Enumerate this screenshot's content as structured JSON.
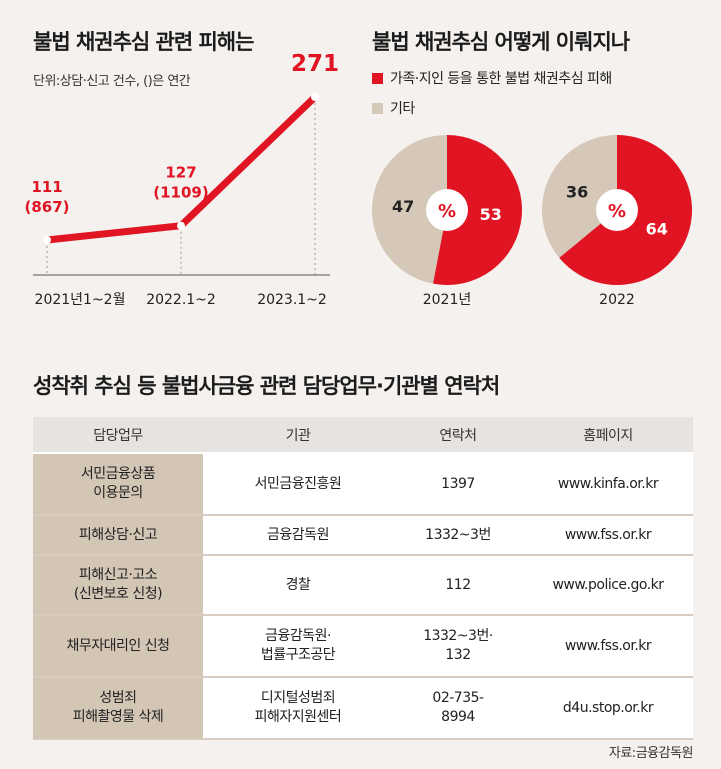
{
  "line_chart": {
    "title": "불법 채권추심 관련 피해는",
    "subtitle": "단위:상담·신고 건수, ()은 연간"
  },
  "pie_charts": {
    "title": "불법 채권추심 어떻게 이뤄지나",
    "legend": [
      {
        "label": "가족·지인 등을 통한 불법 채권추심 피해",
        "color": "#e01422"
      },
      {
        "label": "기타",
        "color": "#d6c8b8"
      }
    ],
    "center_label": "%"
  },
  "chart_data": [
    {
      "type": "line",
      "title": "불법 채권추심 관련 피해는",
      "subtitle": "단위:상담·신고 건수, ()은 연간",
      "categories": [
        "2021년1~2월",
        "2022.1~2",
        "2023.1~2"
      ],
      "values": [
        111,
        127,
        271
      ],
      "annual": [
        "(867)",
        "(1109)",
        ""
      ],
      "value_labels": [
        "111",
        "127",
        "271"
      ],
      "color": "#e01422"
    },
    {
      "type": "pie",
      "label": "2021년",
      "slices": [
        {
          "name": "가족·지인 등을 통한 불법 채권추심 피해",
          "value": 53,
          "color": "#e01422"
        },
        {
          "name": "기타",
          "value": 47,
          "color": "#d6c8b8"
        }
      ]
    },
    {
      "type": "pie",
      "label": "2022",
      "slices": [
        {
          "name": "가족·지인 등을 통한 불법 채권추심 피해",
          "value": 64,
          "color": "#e01422"
        },
        {
          "name": "기타",
          "value": 36,
          "color": "#d6c8b8"
        }
      ]
    }
  ],
  "contacts": {
    "title": "성착취 추심 등 불법사금융 관련 담당업무·기관별 연락처",
    "headers": [
      "담당업무",
      "기관",
      "연락처",
      "홈페이지"
    ],
    "rows": [
      [
        "서민금융상품\n이용문의",
        "서민금융진흥원",
        "1397",
        "www.kinfa.or.kr"
      ],
      [
        "피해상담·신고",
        "금융감독원",
        "1332~3번",
        "www.fss.or.kr"
      ],
      [
        "피해신고·고소\n(신변보호 신청)",
        "경찰",
        "112",
        "www.police.go.kr"
      ],
      [
        "채무자대리인 신청",
        "금융감독원·\n법률구조공단",
        "1332~3번·\n132",
        "www.fss.or.kr"
      ],
      [
        "성범죄\n피해촬영물 삭제",
        "디지털성범죄\n피해자지원센터",
        "02-735-\n8994",
        "d4u.stop.or.kr"
      ]
    ],
    "source": "자료:금융감독원"
  }
}
